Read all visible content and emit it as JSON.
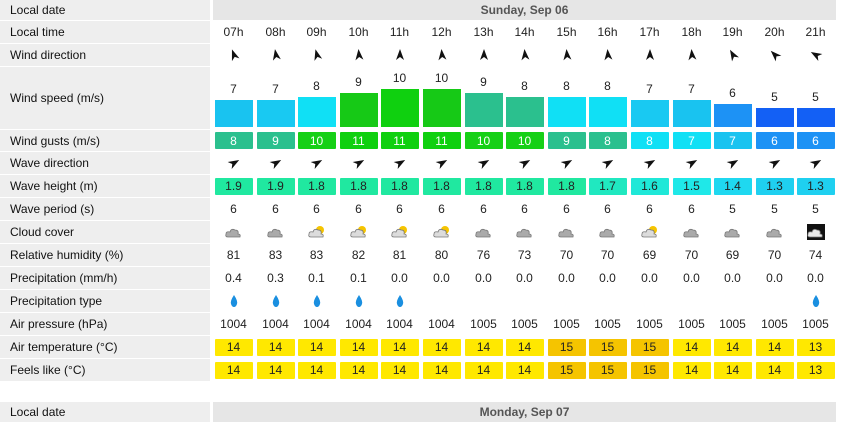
{
  "day1": {
    "date_label": "Local date",
    "date": "Sunday, Sep 06",
    "rows": {
      "local_time": "Local time",
      "wind_direction": "Wind direction",
      "wind_speed": "Wind speed (m/s)",
      "wind_gusts": "Wind gusts (m/s)",
      "wave_direction": "Wave direction",
      "wave_height": "Wave height (m)",
      "wave_period": "Wave period (s)",
      "cloud_cover": "Cloud cover",
      "humidity": "Relative humidity (%)",
      "precipitation": "Precipitation (mm/h)",
      "precip_type": "Precipitation type",
      "pressure": "Air pressure (hPa)",
      "air_temp": "Air temperature (°C)",
      "feels_like": "Feels like (°C)"
    },
    "hours": [
      "07h",
      "08h",
      "09h",
      "10h",
      "11h",
      "12h",
      "13h",
      "14h",
      "15h",
      "16h",
      "17h",
      "18h",
      "19h",
      "20h",
      "21h"
    ],
    "wind_dir_deg": [
      340,
      350,
      345,
      355,
      0,
      355,
      0,
      355,
      355,
      355,
      0,
      355,
      330,
      315,
      300
    ],
    "wind_speed": [
      "7",
      "7",
      "8",
      "9",
      "10",
      "10",
      "9",
      "8",
      "8",
      "8",
      "7",
      "7",
      "6",
      "5",
      "5"
    ],
    "wind_speed_num": [
      7,
      7,
      8,
      9,
      10,
      10,
      9,
      8,
      8,
      8,
      7,
      7,
      6,
      5,
      5
    ],
    "wind_speed_colors": [
      "#19c3f0",
      "#19c9f2",
      "#10e0f5",
      "#16c916",
      "#0fd00f",
      "#16c916",
      "#2bc08e",
      "#2bc08e",
      "#10e0f5",
      "#10e0f5",
      "#19c9f2",
      "#19c3f0",
      "#1d92f5",
      "#1360f5",
      "#1360f5"
    ],
    "wind_gusts": [
      "8",
      "9",
      "10",
      "11",
      "11",
      "11",
      "10",
      "10",
      "9",
      "8",
      "8",
      "7",
      "7",
      "6",
      "6"
    ],
    "wind_gust_colors": [
      "#2bc08e",
      "#2bc08e",
      "#16d016",
      "#0fd00f",
      "#0fd00f",
      "#0fd00f",
      "#16d016",
      "#16d016",
      "#2bc08e",
      "#2bc08e",
      "#10e0f5",
      "#10e0f5",
      "#19c3f0",
      "#1d92f5",
      "#1d92f5"
    ],
    "wave_dir_deg": [
      60,
      60,
      60,
      60,
      60,
      60,
      60,
      60,
      60,
      60,
      60,
      60,
      60,
      60,
      60
    ],
    "wave_height": [
      "1.9",
      "1.9",
      "1.8",
      "1.8",
      "1.8",
      "1.8",
      "1.8",
      "1.8",
      "1.8",
      "1.7",
      "1.6",
      "1.5",
      "1.4",
      "1.3",
      "1.3"
    ],
    "wave_height_colors": [
      "#20e8a0",
      "#20e8a0",
      "#20e8a0",
      "#20e8a0",
      "#20e8a0",
      "#20e8a0",
      "#20e8a0",
      "#20e8a0",
      "#20e8a0",
      "#20e8c0",
      "#1fe8d8",
      "#1fe8e8",
      "#1fd8f0",
      "#1fd0f0",
      "#1fd0f0"
    ],
    "wave_period": [
      "6",
      "6",
      "6",
      "6",
      "6",
      "6",
      "6",
      "6",
      "6",
      "6",
      "6",
      "6",
      "5",
      "5",
      "5"
    ],
    "cloud_icons": [
      "cloud",
      "cloud",
      "sun-cloud",
      "sun-cloud",
      "sun-cloud",
      "sun-cloud",
      "cloud",
      "cloud",
      "cloud",
      "cloud",
      "sun-cloud",
      "cloud",
      "cloud",
      "cloud",
      "night-cloud"
    ],
    "humidity": [
      "81",
      "83",
      "83",
      "82",
      "81",
      "80",
      "76",
      "73",
      "70",
      "70",
      "69",
      "70",
      "69",
      "70",
      "74"
    ],
    "precipitation": [
      "0.4",
      "0.3",
      "0.1",
      "0.1",
      "0.0",
      "0.0",
      "0.0",
      "0.0",
      "0.0",
      "0.0",
      "0.0",
      "0.0",
      "0.0",
      "0.0",
      "0.0"
    ],
    "precip_type": [
      "drop",
      "drop",
      "drop",
      "drop",
      "drop",
      "",
      "",
      "",
      "",
      "",
      "",
      "",
      "",
      "",
      "drop"
    ],
    "pressure": [
      "1004",
      "1004",
      "1004",
      "1004",
      "1004",
      "1004",
      "1005",
      "1005",
      "1005",
      "1005",
      "1005",
      "1005",
      "1005",
      "1005",
      "1005"
    ],
    "air_temp": [
      "14",
      "14",
      "14",
      "14",
      "14",
      "14",
      "14",
      "14",
      "15",
      "15",
      "15",
      "14",
      "14",
      "14",
      "13"
    ],
    "air_temp_colors": [
      "#ffe800",
      "#ffe800",
      "#ffe800",
      "#ffe800",
      "#ffe800",
      "#ffe800",
      "#ffe800",
      "#ffe800",
      "#f5c400",
      "#f5c400",
      "#f5c400",
      "#ffe800",
      "#ffe800",
      "#ffe800",
      "#ffe800"
    ],
    "feels_like": [
      "14",
      "14",
      "14",
      "14",
      "14",
      "14",
      "14",
      "14",
      "15",
      "15",
      "15",
      "14",
      "14",
      "14",
      "13"
    ],
    "feels_like_colors": [
      "#ffe800",
      "#ffe800",
      "#ffe800",
      "#ffe800",
      "#ffe800",
      "#ffe800",
      "#ffe800",
      "#ffe800",
      "#f5c400",
      "#f5c400",
      "#f5c400",
      "#ffe800",
      "#ffe800",
      "#ffe800",
      "#ffe800"
    ]
  },
  "day2": {
    "date_label": "Local date",
    "date": "Monday, Sep 07"
  }
}
